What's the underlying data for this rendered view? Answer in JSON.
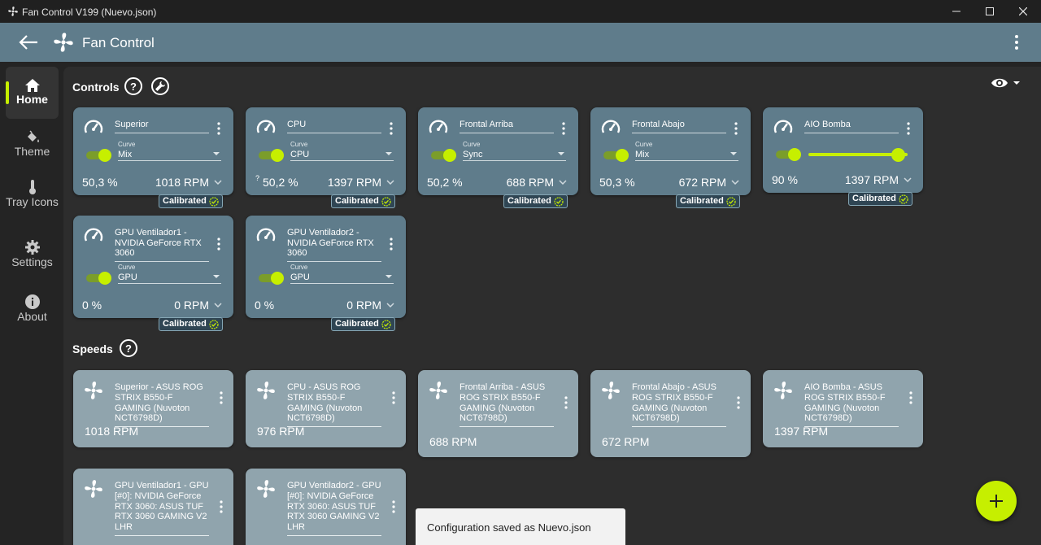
{
  "window": {
    "title": "Fan Control V199 (Nuevo.json)"
  },
  "appbar": {
    "title": "Fan Control"
  },
  "nav": {
    "items": [
      {
        "id": "home",
        "label": "Home"
      },
      {
        "id": "theme",
        "label": "Theme"
      },
      {
        "id": "tray",
        "label": "Tray Icons"
      },
      {
        "id": "settings",
        "label": "Settings"
      },
      {
        "id": "about",
        "label": "About"
      }
    ]
  },
  "controls": {
    "title": "Controls",
    "curve_label": "Curve",
    "calibrated_label": "Calibrated",
    "cards": [
      {
        "name": "Superior",
        "curve": "Mix",
        "percent": "50,3 %",
        "rpm": "1018 RPM"
      },
      {
        "name": "CPU",
        "curve": "CPU",
        "prefix": "?",
        "percent": "50,2 %",
        "rpm": "1397 RPM"
      },
      {
        "name": "Frontal Arriba",
        "curve": "Sync",
        "percent": "50,2 %",
        "rpm": "688 RPM"
      },
      {
        "name": "Frontal Abajo",
        "curve": "Mix",
        "percent": "50,3 %",
        "rpm": "672 RPM"
      },
      {
        "name": "AIO Bomba",
        "percent": "90 %",
        "rpm": "1397 RPM",
        "slider_value": 0.9
      },
      {
        "name": "GPU Ventilador1 - NVIDIA GeForce RTX 3060",
        "curve": "GPU",
        "percent": "0 %",
        "rpm": "0 RPM"
      },
      {
        "name": "GPU Ventilador2 - NVIDIA GeForce RTX 3060",
        "curve": "GPU",
        "percent": "0 %",
        "rpm": "0 RPM"
      }
    ]
  },
  "speeds": {
    "title": "Speeds",
    "cards": [
      {
        "name": "Superior - ASUS ROG STRIX B550-F GAMING (Nuvoton NCT6798D)",
        "rpm": "1018 RPM"
      },
      {
        "name": "CPU - ASUS ROG STRIX B550-F GAMING (Nuvoton NCT6798D)",
        "rpm": "976 RPM"
      },
      {
        "name": "Frontal Arriba - ASUS ROG STRIX B550-F GAMING (Nuvoton NCT6798D)",
        "rpm": "688 RPM"
      },
      {
        "name": "Frontal Abajo - ASUS ROG STRIX B550-F GAMING (Nuvoton NCT6798D)",
        "rpm": "672 RPM"
      },
      {
        "name": "AIO Bomba - ASUS ROG STRIX B550-F GAMING (Nuvoton NCT6798D)",
        "rpm": "1397 RPM"
      },
      {
        "name": "GPU Ventilador1 - GPU [#0]: NVIDIA GeForce RTX 3060: ASUS TUF RTX 3060 GAMING V2 LHR",
        "rpm": ""
      },
      {
        "name": "GPU Ventilador2 - GPU [#0]: NVIDIA GeForce RTX 3060: ASUS TUF RTX 3060 GAMING V2 LHR",
        "rpm": ""
      }
    ]
  },
  "snackbar": {
    "text": "Configuration saved as Nuevo.json"
  },
  "colors": {
    "accent": "#c6ef00",
    "card": "#5f7c8b",
    "speed_card": "#90a4ad",
    "appbar": "#5f7c8b"
  },
  "icons": [
    "fan-icon",
    "back-arrow-icon",
    "more-vert-icon",
    "home-icon",
    "paint-bucket-icon",
    "thermometer-icon",
    "gear-icon",
    "info-icon",
    "help-icon",
    "wrench-icon",
    "eye-icon",
    "gauge-icon",
    "check-circle-icon",
    "plus-icon"
  ]
}
